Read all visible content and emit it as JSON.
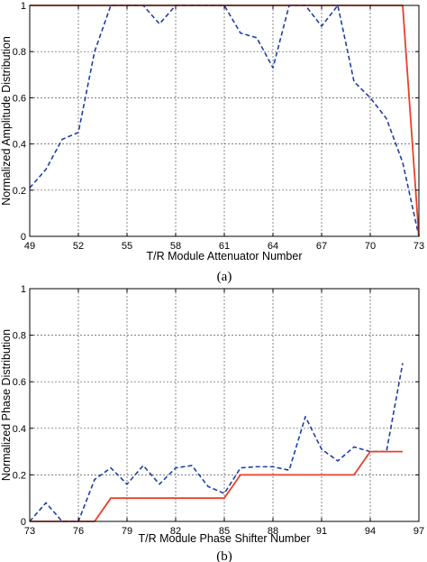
{
  "chart_data": [
    {
      "type": "line",
      "caption": "(a)",
      "xlabel": "T/R Module Attenuator  Number",
      "ylabel": "Normalized Amplitude Distribution",
      "xlim": [
        49,
        73
      ],
      "ylim": [
        0,
        1
      ],
      "xticks": [
        49,
        52,
        55,
        58,
        61,
        64,
        67,
        70,
        73
      ],
      "yticks": [
        0,
        0.2,
        0.4,
        0.6,
        0.8,
        1
      ],
      "ytick_labels": [
        "0",
        "0.2",
        "0.4",
        "0.6",
        "0.8",
        "1"
      ],
      "grid": true,
      "series": [
        {
          "style": "dashed",
          "color": "#1f3fa8",
          "x": [
            49,
            50,
            51,
            52,
            53,
            54,
            55,
            56,
            57,
            58,
            59,
            60,
            61,
            62,
            63,
            64,
            65,
            66,
            67,
            68,
            69,
            70,
            71,
            72,
            73
          ],
          "y": [
            0.21,
            0.29,
            0.42,
            0.45,
            0.8,
            1,
            1,
            1,
            0.92,
            1,
            1,
            1,
            1,
            0.88,
            0.86,
            0.73,
            1,
            1,
            0.91,
            1,
            0.67,
            0.6,
            0.51,
            0.32,
            0.0
          ]
        },
        {
          "style": "solid",
          "color": "#e8412a",
          "x": [
            49,
            72,
            73
          ],
          "y": [
            1,
            1,
            0.0
          ]
        }
      ]
    },
    {
      "type": "line",
      "caption": "(b)",
      "xlabel": "T/R Module Phase Shifter  Number",
      "ylabel": "Normalized Phase Distribution",
      "xlim": [
        73,
        97
      ],
      "ylim": [
        0,
        1
      ],
      "xticks": [
        73,
        76,
        79,
        82,
        85,
        88,
        91,
        94,
        97
      ],
      "yticks": [
        0,
        0.2,
        0.4,
        0.6,
        0.8,
        1
      ],
      "ytick_labels": [
        "0",
        "0.2",
        "0.4",
        "0.6",
        "0.8",
        "1"
      ],
      "grid": true,
      "series": [
        {
          "style": "dashed",
          "color": "#1f3fa8",
          "x": [
            73,
            74,
            75,
            76,
            77,
            78,
            79,
            80,
            81,
            82,
            83,
            84,
            85,
            86,
            87,
            88,
            89,
            90,
            91,
            92,
            93,
            94,
            95,
            96
          ],
          "y": [
            0.0,
            0.08,
            0.0,
            0.0,
            0.18,
            0.23,
            0.16,
            0.24,
            0.16,
            0.23,
            0.24,
            0.15,
            0.12,
            0.23,
            0.235,
            0.235,
            0.22,
            0.45,
            0.31,
            0.26,
            0.32,
            0.3,
            0.3,
            0.68
          ]
        },
        {
          "style": "solid",
          "color": "#e8412a",
          "x": [
            73,
            77,
            78,
            85,
            86,
            93,
            94,
            96
          ],
          "y": [
            0.0,
            0.0,
            0.1,
            0.1,
            0.2,
            0.2,
            0.3,
            0.3
          ]
        }
      ]
    }
  ]
}
